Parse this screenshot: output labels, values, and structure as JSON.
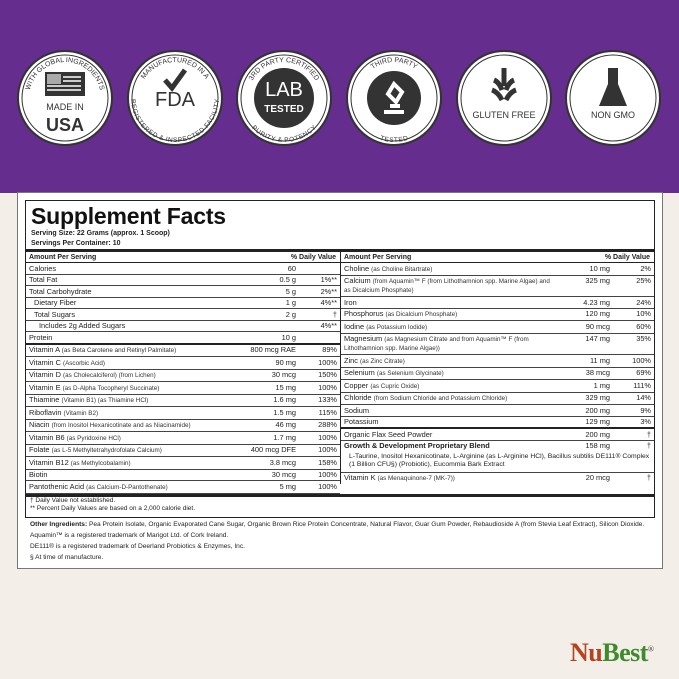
{
  "colors": {
    "brand_purple": "#652d8d",
    "background": "#f3efe8",
    "logo_nu": "#b5431f",
    "logo_best": "#3f8a2c"
  },
  "badges": [
    {
      "icon": "usa-flag-icon",
      "arc": "WITH GLOBAL INGREDIENTS",
      "line1": "MADE IN",
      "line2": "USA"
    },
    {
      "icon": "checkmark-icon",
      "arc": "MANUFACTURED IN A",
      "arc_bottom": "REGISTERED & INSPECTED FACILITY",
      "line1": "FDA"
    },
    {
      "icon": "lab-icon",
      "arc": "3RD PARTY CERTIFIED",
      "arc_bottom": "PURITY & POTENCY",
      "line1": "LAB",
      "line2": "TESTED"
    },
    {
      "icon": "microscope-icon",
      "arc": "THIRD PARTY",
      "arc_bottom": "TESTED"
    },
    {
      "icon": "wheat-icon",
      "line1": "GLUTEN FREE"
    },
    {
      "icon": "flask-icon",
      "line1": "NON GMO"
    }
  ],
  "facts": {
    "title": "Supplement Facts",
    "serving_size": "Serving Size: 22 Grams (approx. 1 Scoop)",
    "servings_per_container": "Servings Per Container: 10",
    "col_amount": "Amount Per Serving",
    "col_dv": "% Daily Value",
    "left_rows": [
      {
        "name": "Calories",
        "detail": "",
        "amount": "60",
        "dv": ""
      },
      {
        "name": "Total Fat",
        "detail": "",
        "amount": "0.5 g",
        "dv": "1%**"
      },
      {
        "name": "Total Carbohydrate",
        "detail": "",
        "amount": "5 g",
        "dv": "2%**"
      },
      {
        "name": "Dietary Fiber",
        "detail": "",
        "amount": "1 g",
        "dv": "4%**",
        "indent": 1
      },
      {
        "name": "Total Sugars",
        "detail": "",
        "amount": "2 g",
        "dv": "†",
        "indent": 1
      },
      {
        "name": "Includes 2g Added Sugars",
        "detail": "",
        "amount": "",
        "dv": "4%**",
        "indent": 2
      },
      {
        "name": "Protein",
        "detail": "",
        "amount": "10 g",
        "dv": "",
        "thick": true
      },
      {
        "name": "Vitamin A",
        "detail": "(as Beta Carotene and Retinyl Palmitate)",
        "amount": "800 mcg RAE",
        "dv": "89%"
      },
      {
        "name": "Vitamin C",
        "detail": "(Ascorbic Acid)",
        "amount": "90 mg",
        "dv": "100%"
      },
      {
        "name": "Vitamin D",
        "detail": "(as Cholecalciferol) (from Lichen)",
        "amount": "30 mcg",
        "dv": "150%"
      },
      {
        "name": "Vitamin E",
        "detail": "(as D-Alpha Tocopheryl Succinate)",
        "amount": "15 mg",
        "dv": "100%"
      },
      {
        "name": "Thiamine",
        "detail": "(Vitamin B1) (as Thiamine HCl)",
        "amount": "1.6 mg",
        "dv": "133%"
      },
      {
        "name": "Riboflavin",
        "detail": "(Vitamin B2)",
        "amount": "1.5 mg",
        "dv": "115%"
      },
      {
        "name": "Niacin",
        "detail": "(from Inositol Hexanicotinate and as Niacinamide)",
        "amount": "46 mg",
        "dv": "288%"
      },
      {
        "name": "Vitamin B6",
        "detail": "(as Pyridoxine HCl)",
        "amount": "1.7 mg",
        "dv": "100%"
      },
      {
        "name": "Folate",
        "detail": "(as L-5 Methyltetrahydrofolate Calcium)",
        "amount": "400 mcg DFE",
        "dv": "100%"
      },
      {
        "name": "Vitamin B12",
        "detail": "(as Methylcobalamin)",
        "amount": "3.8 mcg",
        "dv": "158%"
      },
      {
        "name": "Biotin",
        "detail": "",
        "amount": "30 mcg",
        "dv": "100%"
      },
      {
        "name": "Pantothenic Acid",
        "detail": "(as Calcium-D-Pantothenate)",
        "amount": "5 mg",
        "dv": "100%"
      }
    ],
    "right_rows": [
      {
        "name": "Choline",
        "detail": "(as Choline Bitartrate)",
        "amount": "10 mg",
        "dv": "2%"
      },
      {
        "name": "Calcium",
        "detail": "(from Aquamin™ F (from Lithothamnion spp. Marine Algae) and as Dicalcium Phosphate)",
        "amount": "325 mg",
        "dv": "25%"
      },
      {
        "name": "Iron",
        "detail": "",
        "amount": "4.23 mg",
        "dv": "24%"
      },
      {
        "name": "Phosphorus",
        "detail": "(as Dicalcium Phosphate)",
        "amount": "120 mg",
        "dv": "10%"
      },
      {
        "name": "Iodine",
        "detail": "(as Potassium Iodide)",
        "amount": "90 mcg",
        "dv": "60%"
      },
      {
        "name": "Magnesium",
        "detail": "(as Magnesium Citrate and from Aquamin™ F (from Lithothamnion spp. Marine Algae))",
        "amount": "147 mg",
        "dv": "35%"
      },
      {
        "name": "Zinc",
        "detail": "(as Zinc Citrate)",
        "amount": "11 mg",
        "dv": "100%"
      },
      {
        "name": "Selenium",
        "detail": "(as Selenium Glycinate)",
        "amount": "38 mcg",
        "dv": "69%"
      },
      {
        "name": "Copper",
        "detail": "(as Cupric Oxide)",
        "amount": "1 mg",
        "dv": "111%"
      },
      {
        "name": "Chloride",
        "detail": "(from Sodium Chloride and Potassium Chloride)",
        "amount": "329 mg",
        "dv": "14%"
      },
      {
        "name": "Sodium",
        "detail": "",
        "amount": "200 mg",
        "dv": "9%"
      },
      {
        "name": "Potassium",
        "detail": "",
        "amount": "129 mg",
        "dv": "3%",
        "thick": true
      },
      {
        "name": "Organic Flax Seed Powder",
        "detail": "",
        "amount": "200 mg",
        "dv": "†"
      },
      {
        "name": "Growth & Development Proprietary Blend",
        "detail": "",
        "amount": "158 mg",
        "dv": "†",
        "bold": true,
        "noborder": true
      }
    ],
    "blend_ingredients": "L-Taurine, Inositol Hexanicotinate, L-Arginine (as L-Arginine HCl), Bacillus subtilis DE111® Complex (1 Billion CFU§) (Probiotic), Eucommia Bark Extract",
    "vitamin_k": {
      "name": "Vitamin K",
      "detail": "(as Menaquinone-7 (MK-7))",
      "amount": "20 mcg",
      "dv": "†"
    },
    "footnote_dagger": "† Daily Value not established.",
    "footnote_dv": "** Percent Daily Values are based on a 2,000 calorie diet."
  },
  "other": {
    "label": "Other Ingredients:",
    "text": " Pea Protein Isolate, Organic Evaporated Cane Sugar, Organic Brown Rice Protein Concentrate, Natural Flavor, Guar Gum Powder, Rebaudioside A (from Stevia Leaf Extract), Silicon Dioxide.",
    "aquamin": "Aquamin™ is a registered trademark of Marigot Ltd. of Cork Ireland.",
    "de111": "DE111® is a registered trademark of Deerland Probiotics & Enzymes, Inc.",
    "manufacture": "§ At time of manufacture."
  },
  "logo": {
    "part1": "Nu",
    "part2": "Best",
    "reg": "®"
  }
}
